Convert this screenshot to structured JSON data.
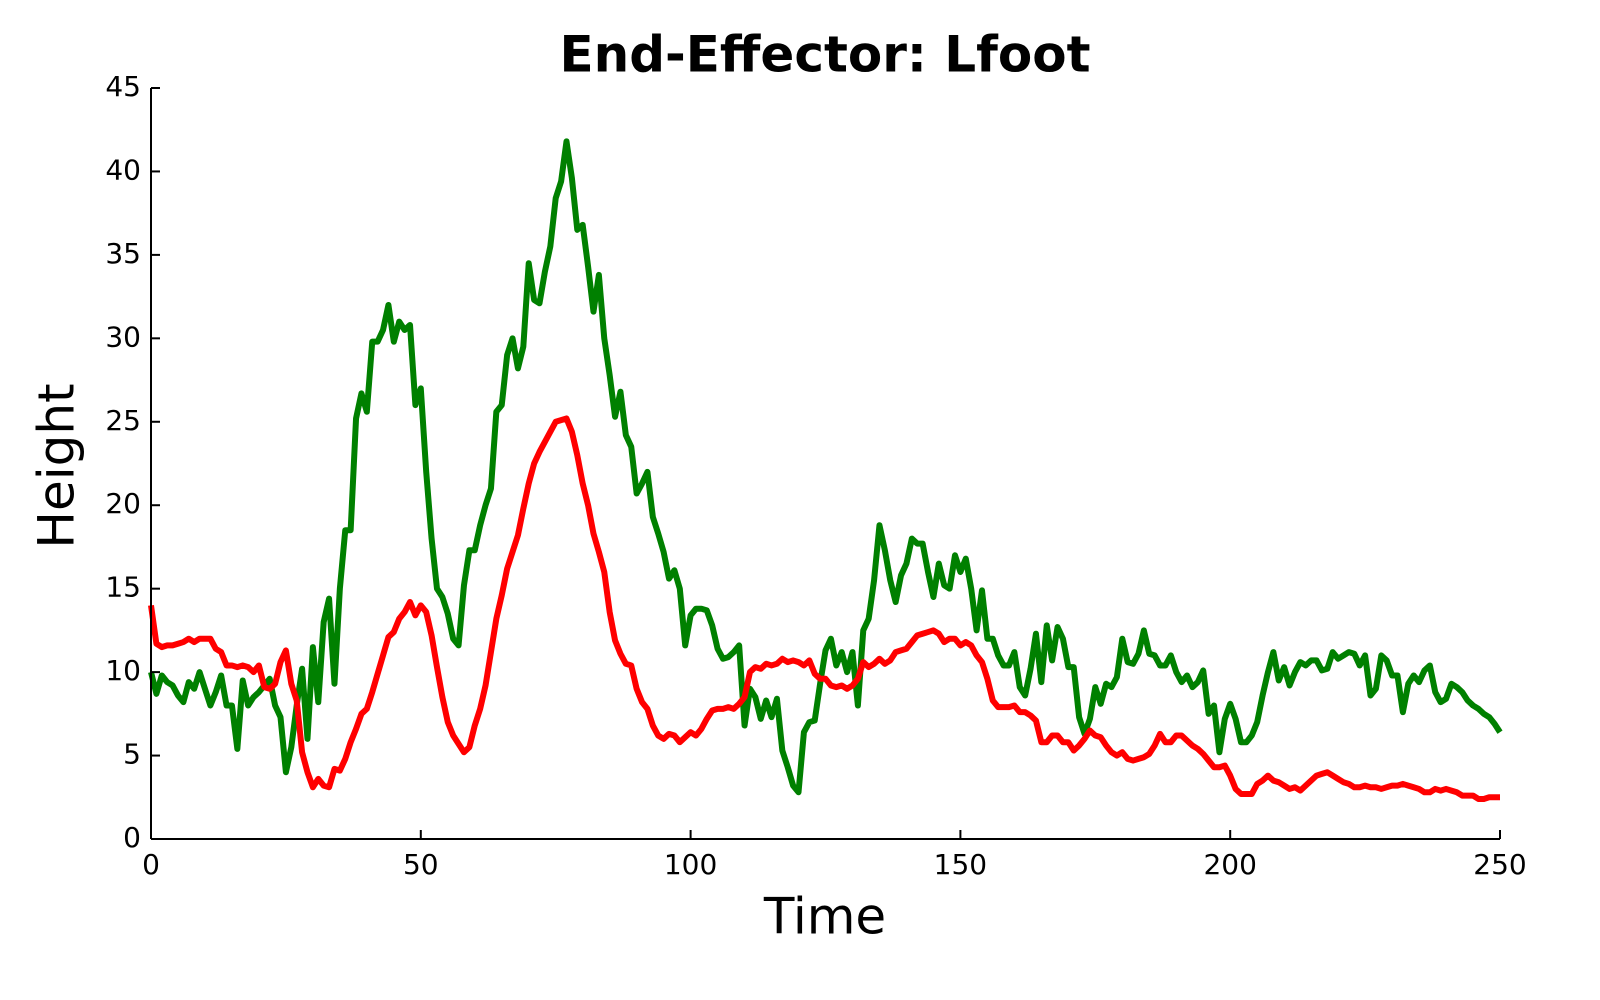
{
  "chart_data": {
    "type": "line",
    "title": "End-Effector: Lfoot",
    "x_label": "Time",
    "y_label": "Height",
    "x": [
      0,
      1,
      2,
      3,
      4,
      5,
      6,
      7,
      8,
      9,
      10,
      11,
      12,
      13,
      14,
      15,
      16,
      17,
      18,
      19,
      20,
      21,
      22,
      23,
      24,
      25,
      26,
      27,
      28,
      29,
      30,
      31,
      32,
      33,
      34,
      35,
      36,
      37,
      38,
      39,
      40,
      41,
      42,
      43,
      44,
      45,
      46,
      47,
      48,
      49,
      50,
      51,
      52,
      53,
      54,
      55,
      56,
      57,
      58,
      59,
      60,
      61,
      62,
      63,
      64,
      65,
      66,
      67,
      68,
      69,
      70,
      71,
      72,
      73,
      74,
      75,
      76,
      77,
      78,
      79,
      80,
      81,
      82,
      83,
      84,
      85,
      86,
      87,
      88,
      89,
      90,
      91,
      92,
      93,
      94,
      95,
      96,
      97,
      98,
      99,
      100,
      101,
      102,
      103,
      104,
      105,
      106,
      107,
      108,
      109,
      110,
      111,
      112,
      113,
      114,
      115,
      116,
      117,
      118,
      119,
      120,
      121,
      122,
      123,
      124,
      125,
      126,
      127,
      128,
      129,
      130,
      131,
      132,
      133,
      134,
      135,
      136,
      137,
      138,
      139,
      140,
      141,
      142,
      143,
      144,
      145,
      146,
      147,
      148,
      149,
      150,
      151,
      152,
      153,
      154,
      155,
      156,
      157,
      158,
      159,
      160,
      161,
      162,
      163,
      164,
      165,
      166,
      167,
      168,
      169,
      170,
      171,
      172,
      173,
      174,
      175,
      176,
      177,
      178,
      179,
      180,
      181,
      182,
      183,
      184,
      185,
      186,
      187,
      188,
      189,
      190,
      191,
      192,
      193,
      194,
      195,
      196,
      197,
      198,
      199,
      200,
      201,
      202,
      203,
      204,
      205,
      206,
      207,
      208,
      209,
      210,
      211,
      212,
      213,
      214,
      215,
      216,
      217,
      218,
      219,
      220,
      221,
      222,
      223,
      224,
      225,
      226,
      227,
      228,
      229,
      230,
      231,
      232,
      233,
      234,
      235,
      236,
      237,
      238,
      239,
      240,
      241,
      242,
      243,
      244,
      245,
      246,
      247,
      248,
      249,
      250
    ],
    "series": [
      {
        "color": "#008000",
        "values": [
          10,
          8.7,
          9.8,
          9.4,
          9.2,
          8.6,
          8.2,
          9.4,
          9.0,
          10,
          9,
          8,
          8.8,
          9.8,
          8,
          8,
          5.4,
          9.5,
          8,
          8.5,
          8.8,
          9.2,
          9.6,
          8,
          7.3,
          4,
          5.5,
          8,
          10.2,
          6,
          11.5,
          8.2,
          13,
          14.4,
          9.3,
          15,
          18.5,
          18.5,
          25.2,
          26.7,
          25.6,
          29.8,
          29.8,
          30.5,
          32,
          29.8,
          31,
          30.5,
          30.8,
          26,
          27,
          22,
          18,
          15,
          14.5,
          13.5,
          12,
          11.6,
          15.2,
          17.3,
          17.3,
          18.8,
          20,
          21,
          25.6,
          26,
          29,
          30,
          28.2,
          29.5,
          34.5,
          32.3,
          32.1,
          34,
          35.5,
          38.4,
          39.4,
          41.8,
          39.6,
          36.5,
          36.8,
          34.3,
          31.6,
          33.8,
          30,
          27.8,
          25.3,
          26.8,
          24.2,
          23.5,
          20.7,
          21.3,
          22,
          19.3,
          18.3,
          17.2,
          15.6,
          16.1,
          15,
          11.6,
          13.4,
          13.8,
          13.8,
          13.7,
          12.8,
          11.4,
          10.8,
          10.9,
          11.2,
          11.6,
          6.8,
          9,
          8.5,
          7.2,
          8.3,
          7.3,
          8.4,
          5.3,
          4.3,
          3.2,
          2.8,
          6.4,
          7,
          7.1,
          9.3,
          11.3,
          12,
          10.4,
          11.2,
          10,
          11.2,
          8,
          12.5,
          13.2,
          15.5,
          18.8,
          17.3,
          15.5,
          14.2,
          15.8,
          16.5,
          18,
          17.7,
          17.7,
          16,
          14.5,
          16.5,
          15.2,
          15,
          17,
          16,
          16.8,
          15,
          12.5,
          14.9,
          12,
          12,
          11,
          10.4,
          10.4,
          11.2,
          9.1,
          8.6,
          10.2,
          12.3,
          9.4,
          12.8,
          10.7,
          12.7,
          12,
          10.3,
          10.3,
          7.3,
          6.3,
          7.2,
          9.1,
          8.1,
          9.3,
          9.1,
          9.7,
          12,
          10.6,
          10.5,
          11.1,
          12.5,
          11.1,
          11,
          10.4,
          10.4,
          11,
          10,
          9.4,
          9.8,
          9.1,
          9.4,
          10.1,
          7.5,
          8,
          5.2,
          7.2,
          8.1,
          7.2,
          5.8,
          5.8,
          6.2,
          7,
          8.6,
          10,
          11.2,
          9.5,
          10.3,
          9.2,
          10,
          10.6,
          10.4,
          10.7,
          10.7,
          10.1,
          10.2,
          11.2,
          10.8,
          11,
          11.2,
          11.1,
          10.4,
          11,
          8.6,
          9,
          11,
          10.7,
          9.8,
          9.8,
          7.6,
          9.3,
          9.8,
          9.4,
          10.1,
          10.4,
          8.8,
          8.2,
          8.4,
          9.3,
          9.1,
          8.8,
          8.3,
          8,
          7.8,
          7.5,
          7.3,
          6.9,
          6.4
        ]
      },
      {
        "color": "#ff0000",
        "values": [
          14,
          11.7,
          11.5,
          11.6,
          11.6,
          11.7,
          11.8,
          12,
          11.8,
          12,
          12,
          12,
          11.4,
          11.2,
          10.4,
          10.4,
          10.3,
          10.4,
          10.3,
          10,
          10.4,
          9.1,
          9,
          9.3,
          10.6,
          11.3,
          9.3,
          8.3,
          5.2,
          4,
          3.1,
          3.6,
          3.2,
          3.1,
          4.2,
          4.1,
          4.8,
          5.8,
          6.6,
          7.5,
          7.8,
          8.8,
          9.9,
          11,
          12.1,
          12.4,
          13.2,
          13.6,
          14.2,
          13.4,
          14,
          13.6,
          12.2,
          10.3,
          8.5,
          7,
          6.2,
          5.7,
          5.2,
          5.5,
          6.8,
          7.8,
          9.2,
          11.2,
          13.2,
          14.6,
          16.2,
          17.2,
          18.2,
          19.8,
          21.3,
          22.5,
          23.2,
          23.8,
          24.4,
          25,
          25.1,
          25.2,
          24.4,
          23,
          21.3,
          20,
          18.3,
          17.2,
          16,
          13.6,
          11.9,
          11.1,
          10.5,
          10.4,
          9,
          8.2,
          7.8,
          6.8,
          6.2,
          6,
          6.3,
          6.2,
          5.8,
          6.1,
          6.4,
          6.2,
          6.6,
          7.2,
          7.7,
          7.8,
          7.8,
          7.9,
          7.8,
          8.1,
          8.5,
          10,
          10.3,
          10.2,
          10.5,
          10.4,
          10.5,
          10.8,
          10.6,
          10.7,
          10.6,
          10.4,
          10.7,
          9.9,
          9.6,
          9.6,
          9.2,
          9.1,
          9.2,
          9,
          9.2,
          9.6,
          10.6,
          10.3,
          10.5,
          10.8,
          10.5,
          10.7,
          11.2,
          11.3,
          11.4,
          11.8,
          12.2,
          12.3,
          12.4,
          12.5,
          12.3,
          11.8,
          12,
          12,
          11.6,
          11.8,
          11.6,
          11,
          10.6,
          9.6,
          8.3,
          7.9,
          7.9,
          7.9,
          8,
          7.6,
          7.6,
          7.4,
          7.1,
          5.8,
          5.8,
          6.2,
          6.2,
          5.8,
          5.8,
          5.3,
          5.6,
          6,
          6.5,
          6.2,
          6.1,
          5.6,
          5.2,
          5,
          5.2,
          4.8,
          4.7,
          4.8,
          4.9,
          5.1,
          5.6,
          6.3,
          5.8,
          5.8,
          6.2,
          6.2,
          5.9,
          5.6,
          5.4,
          5.1,
          4.7,
          4.3,
          4.3,
          4.4,
          3.8,
          3,
          2.7,
          2.7,
          2.7,
          3.3,
          3.5,
          3.8,
          3.5,
          3.4,
          3.2,
          3,
          3.1,
          2.9,
          3.2,
          3.5,
          3.8,
          3.9,
          4,
          3.8,
          3.6,
          3.4,
          3.3,
          3.1,
          3.1,
          3.2,
          3.1,
          3.1,
          3,
          3.1,
          3.2,
          3.2,
          3.3,
          3.2,
          3.1,
          3,
          2.8,
          2.8,
          3,
          2.9,
          3,
          2.9,
          2.8,
          2.6,
          2.6,
          2.6,
          2.4,
          2.4,
          2.5,
          2.5,
          2.5
        ]
      }
    ],
    "xlim": [
      0,
      250
    ],
    "xticks": [
      0,
      50,
      100,
      150,
      200,
      250
    ],
    "ylim": [
      0,
      45
    ],
    "yticks": [
      0,
      5,
      10,
      15,
      20,
      25,
      30,
      35,
      40,
      45
    ]
  }
}
